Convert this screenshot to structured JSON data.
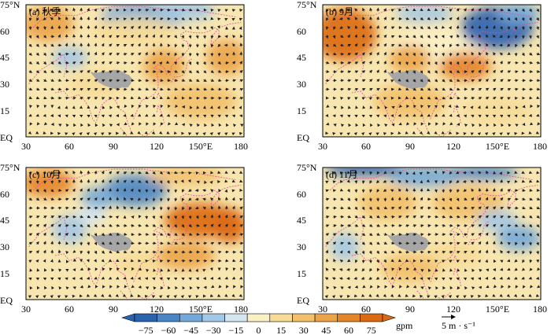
{
  "panels": [
    {
      "label": "(a) 秋季",
      "pattern": "autumn"
    },
    {
      "label": "(b) 9月",
      "pattern": "sep"
    },
    {
      "label": "(c) 10月",
      "pattern": "oct"
    },
    {
      "label": "(d) 11月",
      "pattern": "nov"
    }
  ],
  "axes": {
    "x_ticks": [
      "30",
      "60",
      "90",
      "120",
      "150°E",
      "180"
    ],
    "y_ticks": [
      "75°N",
      "60",
      "45",
      "30",
      "15",
      "EQ"
    ],
    "x_range_deg": [
      30,
      180
    ],
    "y_range_deg": [
      0,
      75
    ]
  },
  "colorbar": {
    "ticks": [
      "−75",
      "−60",
      "−45",
      "−30",
      "−15",
      "0",
      "15",
      "30",
      "45",
      "60",
      "75"
    ],
    "unit": "gpm",
    "colors": [
      "#2b63b0",
      "#4a86c6",
      "#74a8d8",
      "#a3c8e6",
      "#d3e6f2",
      "#f9f0c6",
      "#f7dc98",
      "#f2c06a",
      "#eba448",
      "#e5852a",
      "#dc6a13"
    ]
  },
  "vector_reference": {
    "label": "5 m · s⁻¹"
  },
  "colors": {
    "plateau": "#a6a6a6",
    "coast": "#e0509a",
    "vector": "#222222"
  }
}
